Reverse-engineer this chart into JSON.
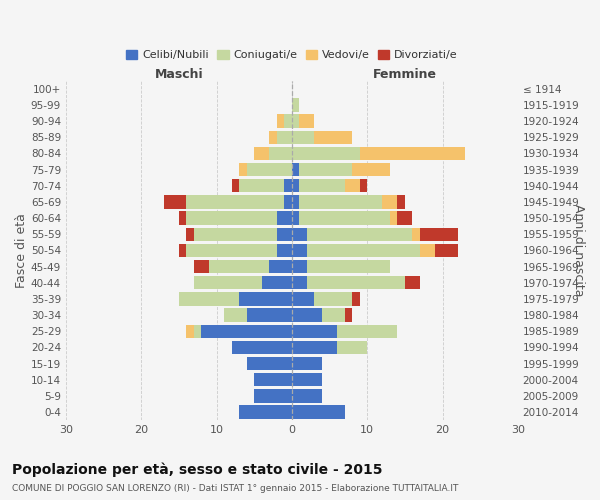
{
  "age_groups": [
    "0-4",
    "5-9",
    "10-14",
    "15-19",
    "20-24",
    "25-29",
    "30-34",
    "35-39",
    "40-44",
    "45-49",
    "50-54",
    "55-59",
    "60-64",
    "65-69",
    "70-74",
    "75-79",
    "80-84",
    "85-89",
    "90-94",
    "95-99",
    "100+"
  ],
  "birth_years": [
    "2010-2014",
    "2005-2009",
    "2000-2004",
    "1995-1999",
    "1990-1994",
    "1985-1989",
    "1980-1984",
    "1975-1979",
    "1970-1974",
    "1965-1969",
    "1960-1964",
    "1955-1959",
    "1950-1954",
    "1945-1949",
    "1940-1944",
    "1935-1939",
    "1930-1934",
    "1925-1929",
    "1920-1924",
    "1915-1919",
    "≤ 1914"
  ],
  "males": {
    "celibi": [
      7,
      5,
      5,
      6,
      8,
      12,
      6,
      7,
      4,
      3,
      2,
      2,
      2,
      1,
      1,
      0,
      0,
      0,
      0,
      0,
      0
    ],
    "coniugati": [
      0,
      0,
      0,
      0,
      0,
      1,
      3,
      8,
      9,
      8,
      12,
      11,
      12,
      13,
      6,
      6,
      3,
      2,
      1,
      0,
      0
    ],
    "vedovi": [
      0,
      0,
      0,
      0,
      0,
      1,
      0,
      0,
      0,
      0,
      0,
      0,
      0,
      0,
      0,
      1,
      2,
      1,
      1,
      0,
      0
    ],
    "divorziati": [
      0,
      0,
      0,
      0,
      0,
      0,
      0,
      0,
      0,
      2,
      1,
      1,
      1,
      3,
      1,
      0,
      0,
      0,
      0,
      0,
      0
    ]
  },
  "females": {
    "nubili": [
      7,
      4,
      4,
      4,
      6,
      6,
      4,
      3,
      2,
      2,
      2,
      2,
      1,
      1,
      1,
      1,
      0,
      0,
      0,
      0,
      0
    ],
    "coniugate": [
      0,
      0,
      0,
      0,
      4,
      8,
      3,
      5,
      13,
      11,
      15,
      14,
      12,
      11,
      6,
      7,
      9,
      3,
      1,
      1,
      0
    ],
    "vedove": [
      0,
      0,
      0,
      0,
      0,
      0,
      0,
      0,
      0,
      0,
      2,
      1,
      1,
      2,
      2,
      5,
      14,
      5,
      2,
      0,
      0
    ],
    "divorziate": [
      0,
      0,
      0,
      0,
      0,
      0,
      1,
      1,
      2,
      0,
      3,
      5,
      2,
      1,
      1,
      0,
      0,
      0,
      0,
      0,
      0
    ]
  },
  "colors": {
    "celibi": "#4472c4",
    "coniugati": "#c5d8a0",
    "vedovi": "#f5c26b",
    "divorziati": "#c0392b"
  },
  "xlim": 30,
  "title": "Popolazione per età, sesso e stato civile - 2015",
  "subtitle": "COMUNE DI POGGIO SAN LORENZO (RI) - Dati ISTAT 1° gennaio 2015 - Elaborazione TUTTAITALIA.IT",
  "ylabel_left": "Fasce di età",
  "ylabel_right": "Anni di nascita",
  "xlabel_left": "Maschi",
  "xlabel_right": "Femmine",
  "legend_labels": [
    "Celibi/Nubili",
    "Coniugati/e",
    "Vedovi/e",
    "Divorziati/e"
  ],
  "bg_color": "#f5f5f5"
}
